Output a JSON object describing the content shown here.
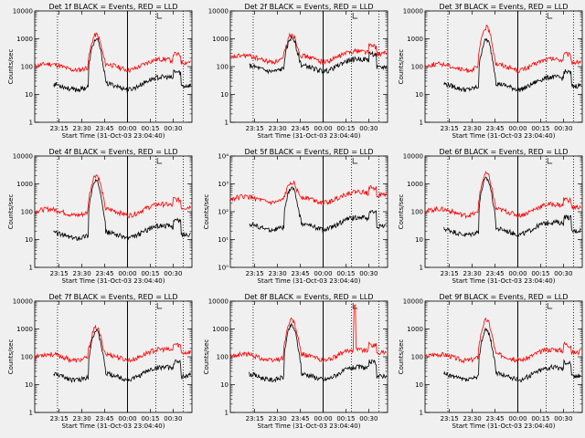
{
  "chart_data": [
    {
      "type": "line",
      "title": "Det 1f BLACK = Events, RED = LLD",
      "ylabel": "Counts/sec",
      "xlabel": "Start Time (31-Oct-03 23:04:40)",
      "ylim": [
        1,
        10000
      ],
      "y_scale": "log",
      "yticks": [
        "1",
        "10",
        "100",
        "1000",
        "10000"
      ],
      "xticks": [
        "23:15",
        "23:30",
        "23:45",
        "00:00",
        "00:15",
        "00:30"
      ],
      "series": [
        {
          "name": "Events",
          "color": "#000000"
        },
        {
          "name": "LLD",
          "color": "#ff0000"
        }
      ],
      "black_level": 20,
      "red_level": 100,
      "peak_black": 900,
      "peak_red": 1300,
      "spike": 0
    },
    {
      "type": "line",
      "title": "Det 2f BLACK = Events, RED = LLD",
      "ylabel": "",
      "xlabel": "Start Time (31-Oct-03 23:04:40)",
      "ylim": [
        1,
        10000
      ],
      "y_scale": "log",
      "yticks": [
        "1",
        "10",
        "100",
        "1000",
        "10000"
      ],
      "xticks": [
        "23:15",
        "23:30",
        "23:45",
        "00:00",
        "00:15",
        "00:30"
      ],
      "series": [
        {
          "name": "Events",
          "color": "#000000"
        },
        {
          "name": "LLD",
          "color": "#ff0000"
        }
      ],
      "black_level": 90,
      "red_level": 200,
      "peak_black": 1000,
      "peak_red": 1300,
      "spike": 0
    },
    {
      "type": "line",
      "title": "Det 3f BLACK = Events, RED = LLD",
      "ylabel": "Counts/sec",
      "xlabel": "Start Time (31-Oct-03 23:04:40)",
      "ylim": [
        1,
        10000
      ],
      "y_scale": "log",
      "yticks": [
        "1",
        "10",
        "100",
        "1000",
        "10000"
      ],
      "xticks": [
        "23:15",
        "23:30",
        "23:45",
        "00:00",
        "00:15",
        "00:30"
      ],
      "series": [
        {
          "name": "Events",
          "color": "#000000"
        },
        {
          "name": "LLD",
          "color": "#ff0000"
        }
      ],
      "black_level": 20,
      "red_level": 100,
      "peak_black": 900,
      "peak_red": 2500,
      "spike": 0
    },
    {
      "type": "line",
      "title": "Det 4f BLACK = Events, RED = LLD",
      "ylabel": "Counts/sec",
      "xlabel": "Start Time (31-Oct-03 23:04:40)",
      "ylim": [
        1,
        10000
      ],
      "y_scale": "log",
      "yticks": [
        "1",
        "10",
        "100",
        "1000",
        "10000"
      ],
      "xticks": [
        "23:15",
        "23:30",
        "23:45",
        "00:00",
        "00:15",
        "00:30"
      ],
      "series": [
        {
          "name": "Events",
          "color": "#000000"
        },
        {
          "name": "LLD",
          "color": "#ff0000"
        }
      ],
      "black_level": 15,
      "red_level": 100,
      "peak_black": 1200,
      "peak_red": 2000,
      "spike": 0
    },
    {
      "type": "line",
      "title": "Det 5f BLACK = Events, RED = LLD",
      "ylabel": "Counts/sec",
      "xlabel": "Start Time (31-Oct-03 23:04:40)",
      "ylim": [
        1,
        10000
      ],
      "y_scale": "log",
      "yticks": [
        "10⁰",
        "10¹",
        "10²",
        "10³",
        "10⁴"
      ],
      "xticks": [
        "23:15",
        "23:30",
        "23:45",
        "00:00",
        "00:15",
        "00:30"
      ],
      "series": [
        {
          "name": "Events",
          "color": "#000000"
        },
        {
          "name": "LLD",
          "color": "#ff0000"
        }
      ],
      "black_level": 30,
      "red_level": 280,
      "peak_black": 700,
      "peak_red": 900,
      "spike": 0
    },
    {
      "type": "line",
      "title": "Det 6f BLACK = Events, RED = LLD",
      "ylabel": "Counts/sec",
      "xlabel": "Start Time (31-Oct-03 23:04:40)",
      "ylim": [
        1,
        10000
      ],
      "y_scale": "log",
      "yticks": [
        "1",
        "10",
        "100",
        "1000",
        "10000"
      ],
      "xticks": [
        "23:15",
        "23:30",
        "23:45",
        "00:00",
        "00:15",
        "00:30"
      ],
      "series": [
        {
          "name": "Events",
          "color": "#000000"
        },
        {
          "name": "LLD",
          "color": "#ff0000"
        }
      ],
      "black_level": 20,
      "red_level": 100,
      "peak_black": 1500,
      "peak_red": 2200,
      "spike": 0
    },
    {
      "type": "line",
      "title": "Det 7f BLACK = Events, RED = LLD",
      "ylabel": "Counts/sec",
      "xlabel": "Start Time (31-Oct-03 23:04:40)",
      "ylim": [
        1,
        10000
      ],
      "y_scale": "log",
      "yticks": [
        "1",
        "10",
        "100",
        "1000",
        "10000"
      ],
      "xticks": [
        "23:15",
        "23:30",
        "23:45",
        "00:00",
        "00:15",
        "00:30"
      ],
      "series": [
        {
          "name": "Events",
          "color": "#000000"
        },
        {
          "name": "LLD",
          "color": "#ff0000"
        }
      ],
      "black_level": 20,
      "red_level": 100,
      "peak_black": 800,
      "peak_red": 1000,
      "spike": 0
    },
    {
      "type": "line",
      "title": "Det 8f BLACK = Events, RED = LLD",
      "ylabel": "Counts/sec",
      "xlabel": "Start Time (31-Oct-03 23:04:40)",
      "ylim": [
        1,
        10000
      ],
      "y_scale": "log",
      "yticks": [
        "1",
        "10",
        "100",
        "1000",
        "10000"
      ],
      "xticks": [
        "23:15",
        "23:30",
        "23:45",
        "00:00",
        "00:15",
        "00:30"
      ],
      "series": [
        {
          "name": "Events",
          "color": "#000000"
        },
        {
          "name": "LLD",
          "color": "#ff0000"
        }
      ],
      "black_level": 20,
      "red_level": 100,
      "peak_black": 1300,
      "peak_red": 2000,
      "spike": 8000
    },
    {
      "type": "line",
      "title": "Det 9f BLACK = Events, RED = LLD",
      "ylabel": "Counts/sec",
      "xlabel": "Start Time (31-Oct-03 23:04:40)",
      "ylim": [
        1,
        10000
      ],
      "y_scale": "log",
      "yticks": [
        "1",
        "10",
        "100",
        "1000",
        "10000"
      ],
      "xticks": [
        "23:15",
        "23:30",
        "23:45",
        "00:00",
        "00:15",
        "00:30"
      ],
      "series": [
        {
          "name": "Events",
          "color": "#000000"
        },
        {
          "name": "LLD",
          "color": "#ff0000"
        }
      ],
      "black_level": 20,
      "red_level": 100,
      "peak_black": 900,
      "peak_red": 2000,
      "spike": 0
    }
  ]
}
